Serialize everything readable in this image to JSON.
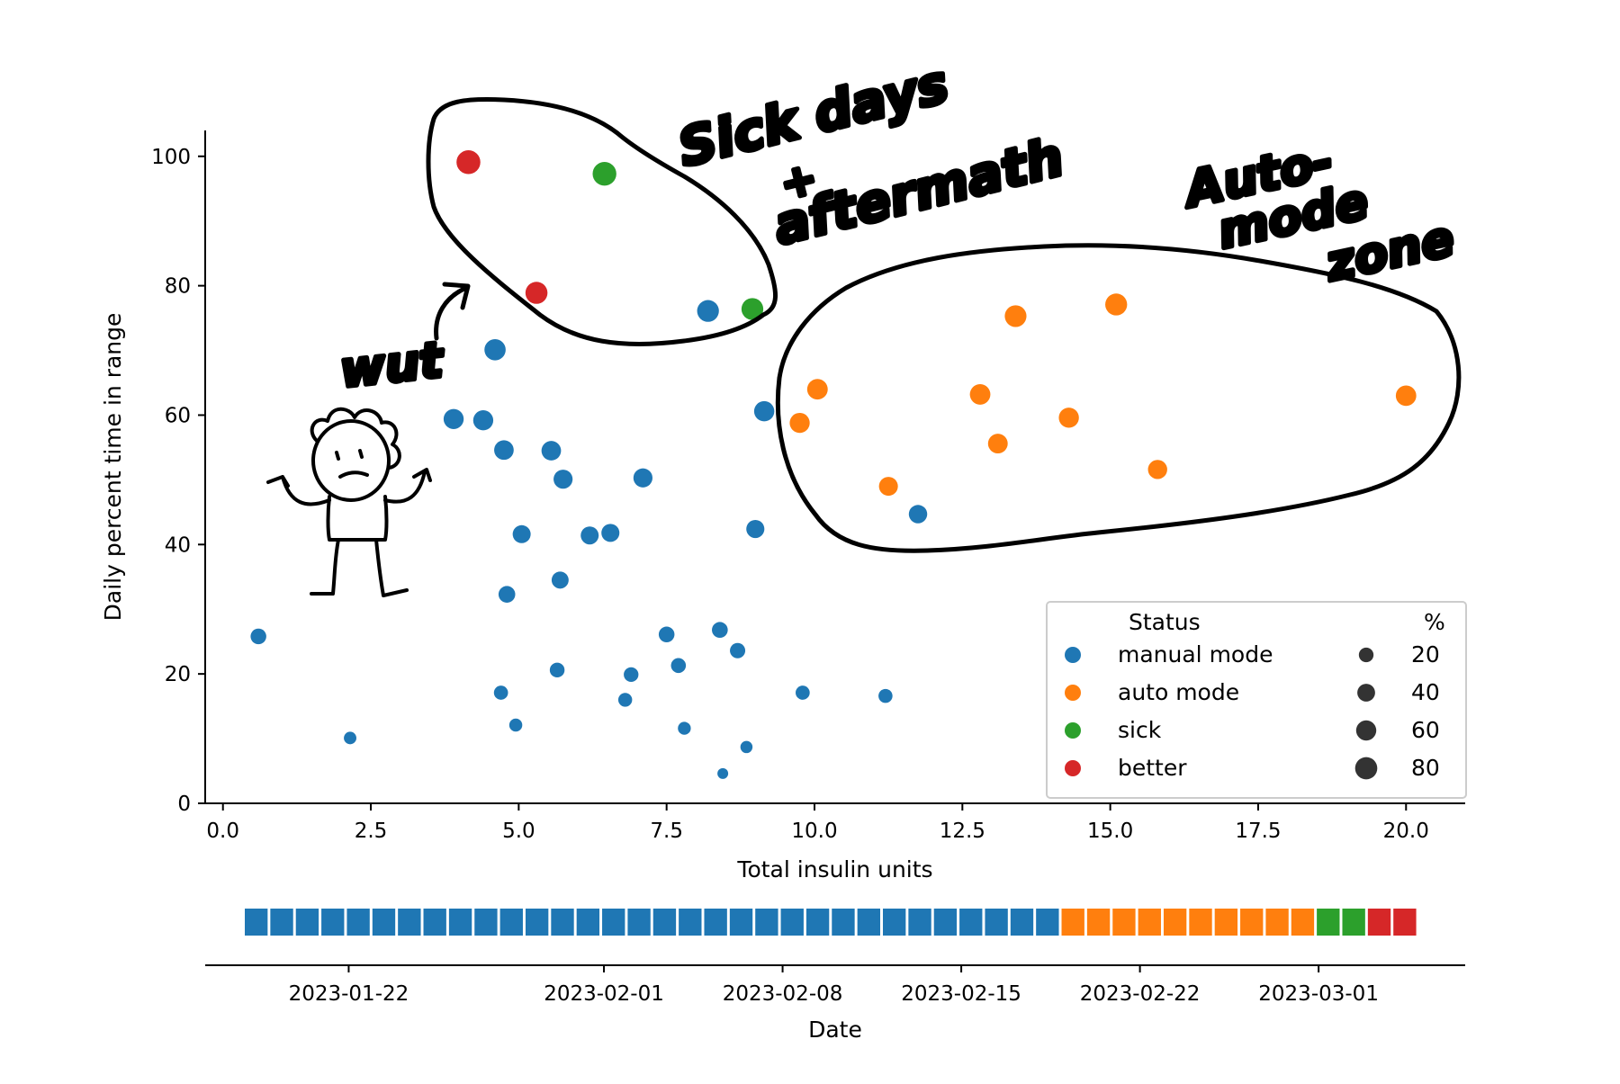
{
  "chart_data": [
    {
      "type": "scatter",
      "xlabel": "Total insulin units",
      "ylabel": "Daily percent time in range",
      "xlim": [
        -0.3,
        21.0
      ],
      "ylim": [
        0,
        104
      ],
      "x_ticks": [
        0.0,
        2.5,
        5.0,
        7.5,
        10.0,
        12.5,
        15.0,
        17.5,
        20.0
      ],
      "x_tick_labels": [
        "0.0",
        "2.5",
        "5.0",
        "7.5",
        "10.0",
        "12.5",
        "15.0",
        "17.5",
        "20.0"
      ],
      "y_ticks": [
        0,
        20,
        40,
        60,
        80,
        100
      ],
      "y_tick_labels": [
        "0",
        "20",
        "40",
        "60",
        "80",
        "100"
      ],
      "grid": false,
      "legend": {
        "placement": "lower-right",
        "hue_title": "Status",
        "size_title": "%",
        "hue_items": [
          {
            "label": "manual mode",
            "color": "#1f77b4"
          },
          {
            "label": "auto mode",
            "color": "#ff7f0e"
          },
          {
            "label": "sick",
            "color": "#2ca02c"
          },
          {
            "label": "better",
            "color": "#d62728"
          }
        ],
        "size_items": [
          {
            "label": "20",
            "value": 20
          },
          {
            "label": "40",
            "value": 40
          },
          {
            "label": "60",
            "value": 60
          },
          {
            "label": "80",
            "value": 80
          }
        ]
      },
      "series": [
        {
          "name": "manual mode",
          "color": "#1f77b4",
          "points": [
            {
              "x": 0.6,
              "y": 25.8
            },
            {
              "x": 2.15,
              "y": 10.1
            },
            {
              "x": 3.9,
              "y": 59.4
            },
            {
              "x": 4.4,
              "y": 59.2
            },
            {
              "x": 4.6,
              "y": 70.1
            },
            {
              "x": 4.75,
              "y": 54.6
            },
            {
              "x": 4.8,
              "y": 32.3
            },
            {
              "x": 4.7,
              "y": 17.1
            },
            {
              "x": 4.95,
              "y": 12.1
            },
            {
              "x": 5.05,
              "y": 41.6
            },
            {
              "x": 5.55,
              "y": 54.5
            },
            {
              "x": 5.75,
              "y": 50.1
            },
            {
              "x": 5.7,
              "y": 34.5
            },
            {
              "x": 5.65,
              "y": 20.6
            },
            {
              "x": 6.2,
              "y": 41.4
            },
            {
              "x": 6.55,
              "y": 41.8
            },
            {
              "x": 6.9,
              "y": 19.9
            },
            {
              "x": 6.8,
              "y": 16.0
            },
            {
              "x": 7.1,
              "y": 50.3
            },
            {
              "x": 7.5,
              "y": 26.1
            },
            {
              "x": 7.7,
              "y": 21.3
            },
            {
              "x": 7.8,
              "y": 11.6
            },
            {
              "x": 8.2,
              "y": 76.1
            },
            {
              "x": 8.4,
              "y": 26.8
            },
            {
              "x": 8.45,
              "y": 4.6
            },
            {
              "x": 8.7,
              "y": 23.6
            },
            {
              "x": 8.85,
              "y": 8.7
            },
            {
              "x": 9.0,
              "y": 42.4
            },
            {
              "x": 9.15,
              "y": 60.6
            },
            {
              "x": 9.8,
              "y": 17.1
            },
            {
              "x": 11.2,
              "y": 16.6
            },
            {
              "x": 11.75,
              "y": 44.7
            }
          ]
        },
        {
          "name": "auto mode",
          "color": "#ff7f0e",
          "points": [
            {
              "x": 9.75,
              "y": 58.8
            },
            {
              "x": 10.05,
              "y": 64.0
            },
            {
              "x": 11.25,
              "y": 49.0
            },
            {
              "x": 12.8,
              "y": 63.2
            },
            {
              "x": 13.1,
              "y": 55.6
            },
            {
              "x": 13.4,
              "y": 75.3
            },
            {
              "x": 14.3,
              "y": 59.6
            },
            {
              "x": 15.1,
              "y": 77.1
            },
            {
              "x": 15.8,
              "y": 51.6
            },
            {
              "x": 20.0,
              "y": 63.0
            }
          ]
        },
        {
          "name": "sick",
          "color": "#2ca02c",
          "points": [
            {
              "x": 6.45,
              "y": 97.3
            },
            {
              "x": 8.95,
              "y": 76.4
            }
          ]
        },
        {
          "name": "better",
          "color": "#d62728",
          "points": [
            {
              "x": 4.15,
              "y": 99.1
            },
            {
              "x": 5.3,
              "y": 78.9
            }
          ]
        }
      ],
      "annotations": [
        "Sick days + aftermath",
        "Auto-mode zone",
        "wut"
      ]
    },
    {
      "type": "timeline",
      "xlabel": "Date",
      "date_range": [
        "2023-01-18",
        "2023-03-04"
      ],
      "x_ticks": [
        "2023-01-22",
        "2023-02-01",
        "2023-02-08",
        "2023-02-15",
        "2023-02-22",
        "2023-03-01"
      ],
      "segments": [
        {
          "status": "manual mode",
          "color": "#1f77b4",
          "start": "2023-01-18",
          "end": "2023-02-18"
        },
        {
          "status": "auto mode",
          "color": "#ff7f0e",
          "start": "2023-02-19",
          "end": "2023-02-28"
        },
        {
          "status": "sick",
          "color": "#2ca02c",
          "start": "2023-03-01",
          "end": "2023-03-02"
        },
        {
          "status": "better",
          "color": "#d62728",
          "start": "2023-03-03",
          "end": "2023-03-04"
        }
      ]
    }
  ]
}
